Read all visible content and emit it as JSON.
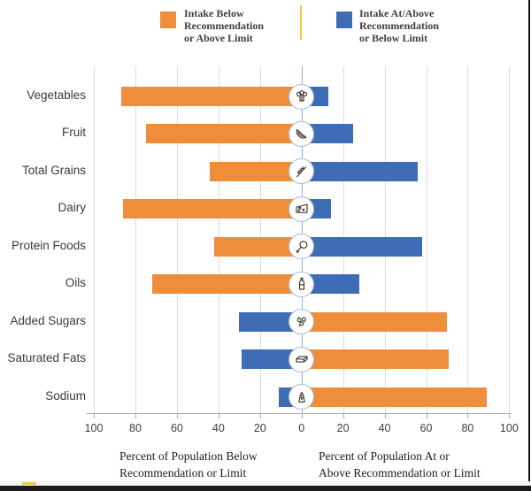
{
  "legend": {
    "below": {
      "label": "Intake Below\nRecommendation\nor Above Limit",
      "color_name": "orange"
    },
    "at_above": {
      "label": "Intake At/Above\nRecommendation\nor Below Limit",
      "color_name": "blue"
    },
    "divider_color": "#efc93d"
  },
  "colors": {
    "orange": "#ef8e3a",
    "blue": "#3e6db5",
    "gridline": "#dcdcdc",
    "zero_line": "#8fb1d8",
    "axis_line": "#a8a8a8",
    "icon_border": "#a9bdd3"
  },
  "chart_data": {
    "type": "bar",
    "variant": "diverging-horizontal",
    "title": "",
    "grid": true,
    "axis_max": 100,
    "xlabel_left": "Percent of Population Below\nRecommendation or Limit",
    "xlabel_right": "Percent of Population At or\nAbove Recommendation or Limit",
    "ticks": [
      {
        "value": -100,
        "label": "100"
      },
      {
        "value": -80,
        "label": "80"
      },
      {
        "value": -60,
        "label": "60"
      },
      {
        "value": -40,
        "label": "40"
      },
      {
        "value": -20,
        "label": "20"
      },
      {
        "value": 0,
        "label": "0"
      },
      {
        "value": 20,
        "label": "20"
      },
      {
        "value": 40,
        "label": "40"
      },
      {
        "value": 60,
        "label": "60"
      },
      {
        "value": 80,
        "label": "80"
      },
      {
        "value": 100,
        "label": "100"
      }
    ],
    "categories": [
      "Vegetables",
      "Fruit",
      "Total Grains",
      "Dairy",
      "Protein Foods",
      "Oils",
      "Added Sugars",
      "Saturated Fats",
      "Sodium"
    ],
    "rows": [
      {
        "label": "Vegetables",
        "icon": "broccoli-icon",
        "left": {
          "series": "Intake Below Recommendation or Above Limit",
          "color": "orange",
          "value": 87
        },
        "right": {
          "series": "Intake At/Above Recommendation or Below Limit",
          "color": "blue",
          "value": 13
        }
      },
      {
        "label": "Fruit",
        "icon": "fruit-slice-icon",
        "left": {
          "series": "Intake Below Recommendation or Above Limit",
          "color": "orange",
          "value": 75
        },
        "right": {
          "series": "Intake At/Above Recommendation or Below Limit",
          "color": "blue",
          "value": 25
        }
      },
      {
        "label": "Total Grains",
        "icon": "wheat-icon",
        "left": {
          "series": "Intake Below Recommendation or Above Limit",
          "color": "orange",
          "value": 44
        },
        "right": {
          "series": "Intake At/Above Recommendation or Below Limit",
          "color": "blue",
          "value": 56
        }
      },
      {
        "label": "Dairy",
        "icon": "cheese-icon",
        "left": {
          "series": "Intake Below Recommendation or Above Limit",
          "color": "orange",
          "value": 86
        },
        "right": {
          "series": "Intake At/Above Recommendation or Below Limit",
          "color": "blue",
          "value": 14
        }
      },
      {
        "label": "Protein Foods",
        "icon": "drumstick-icon",
        "left": {
          "series": "Intake Below Recommendation or Above Limit",
          "color": "orange",
          "value": 42
        },
        "right": {
          "series": "Intake At/Above Recommendation or Below Limit",
          "color": "blue",
          "value": 58
        }
      },
      {
        "label": "Oils",
        "icon": "oil-bottle-icon",
        "left": {
          "series": "Intake Below Recommendation or Above Limit",
          "color": "orange",
          "value": 72
        },
        "right": {
          "series": "Intake At/Above Recommendation or Below Limit",
          "color": "blue",
          "value": 28
        }
      },
      {
        "label": "Added Sugars",
        "icon": "sugar-cubes-icon",
        "left": {
          "series": "Intake At/Above Recommendation or Below Limit",
          "color": "blue",
          "value": 30
        },
        "right": {
          "series": "Intake Below Recommendation or Above Limit",
          "color": "orange",
          "value": 70
        }
      },
      {
        "label": "Saturated Fats",
        "icon": "butter-icon",
        "left": {
          "series": "Intake At/Above Recommendation or Below Limit",
          "color": "blue",
          "value": 29
        },
        "right": {
          "series": "Intake Below Recommendation or Above Limit",
          "color": "orange",
          "value": 71
        }
      },
      {
        "label": "Sodium",
        "icon": "salt-shaker-icon",
        "left": {
          "series": "Intake At/Above Recommendation or Below Limit",
          "color": "blue",
          "value": 11
        },
        "right": {
          "series": "Intake Below Recommendation or Above Limit",
          "color": "orange",
          "value": 89
        }
      }
    ]
  }
}
